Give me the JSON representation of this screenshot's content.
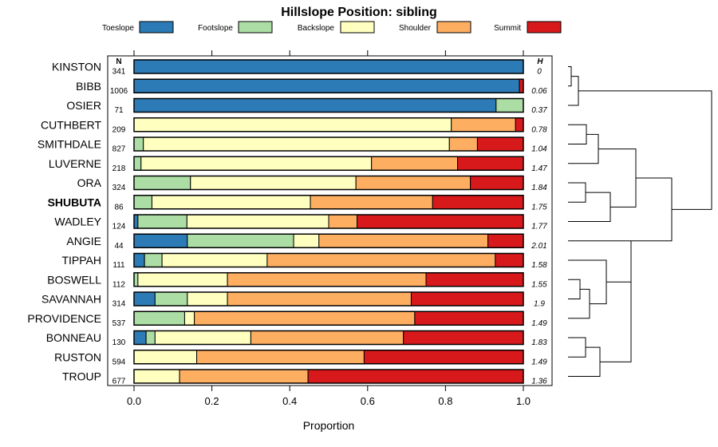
{
  "chart_data": {
    "type": "bar",
    "stacked": true,
    "orientation": "horizontal",
    "title": "Hillslope Position: sibling",
    "xlabel": "Proportion",
    "ylabel": "",
    "xlim": [
      0,
      1
    ],
    "xticks": [
      "0.0",
      "0.2",
      "0.4",
      "0.6",
      "0.8",
      "1.0"
    ],
    "xtick_values": [
      0,
      0.2,
      0.4,
      0.6,
      0.8,
      1.0
    ],
    "n_header": "N",
    "h_header": "H",
    "highlight": "SHUBUTA",
    "categories": [
      "KINSTON",
      "BIBB",
      "OSIER",
      "CUTHBERT",
      "SMITHDALE",
      "LUVERNE",
      "ORA",
      "SHUBUTA",
      "WADLEY",
      "ANGIE",
      "TIPPAH",
      "BOSWELL",
      "SAVANNAH",
      "PROVIDENCE",
      "BONNEAU",
      "RUSTON",
      "TROUP"
    ],
    "n": [
      "341",
      "1006",
      "71",
      "209",
      "827",
      "218",
      "324",
      "86",
      "124",
      "44",
      "111",
      "112",
      "314",
      "537",
      "130",
      "594",
      "677"
    ],
    "h": [
      "0",
      "0.06",
      "0.37",
      "0.78",
      "1.04",
      "1.47",
      "1.84",
      "1.75",
      "1.77",
      "2.01",
      "1.58",
      "1.55",
      "1.9",
      "1.49",
      "1.83",
      "1.49",
      "1.36"
    ],
    "series": [
      {
        "name": "Toeslope",
        "color": "#2c7bb6",
        "values": [
          1.0,
          0.99,
          0.93,
          0.0,
          0.0,
          0.0,
          0.0,
          0.0,
          0.01,
          0.137,
          0.027,
          0.0,
          0.054,
          0.0,
          0.031,
          0.0,
          0.0
        ]
      },
      {
        "name": "Footslope",
        "color": "#abdda4",
        "values": [
          0.0,
          0.0,
          0.07,
          0.0,
          0.024,
          0.018,
          0.145,
          0.046,
          0.126,
          0.273,
          0.045,
          0.01,
          0.083,
          0.13,
          0.023,
          0.0,
          0.0
        ]
      },
      {
        "name": "Backslope",
        "color": "#ffffbf",
        "values": [
          0.0,
          0.0,
          0.0,
          0.815,
          0.786,
          0.592,
          0.425,
          0.407,
          0.364,
          0.065,
          0.27,
          0.23,
          0.103,
          0.025,
          0.246,
          0.161,
          0.117
        ]
      },
      {
        "name": "Shoulder",
        "color": "#fdae61",
        "values": [
          0.0,
          0.0,
          0.0,
          0.165,
          0.072,
          0.221,
          0.294,
          0.314,
          0.073,
          0.434,
          0.586,
          0.51,
          0.472,
          0.566,
          0.392,
          0.43,
          0.33
        ]
      },
      {
        "name": "Summit",
        "color": "#d7191c",
        "values": [
          0.0,
          0.01,
          0.0,
          0.02,
          0.118,
          0.169,
          0.136,
          0.233,
          0.427,
          0.091,
          0.072,
          0.25,
          0.288,
          0.279,
          0.308,
          0.409,
          0.553
        ]
      }
    ],
    "dendrogram": "hierarchical clustering of siblings shown at right"
  }
}
